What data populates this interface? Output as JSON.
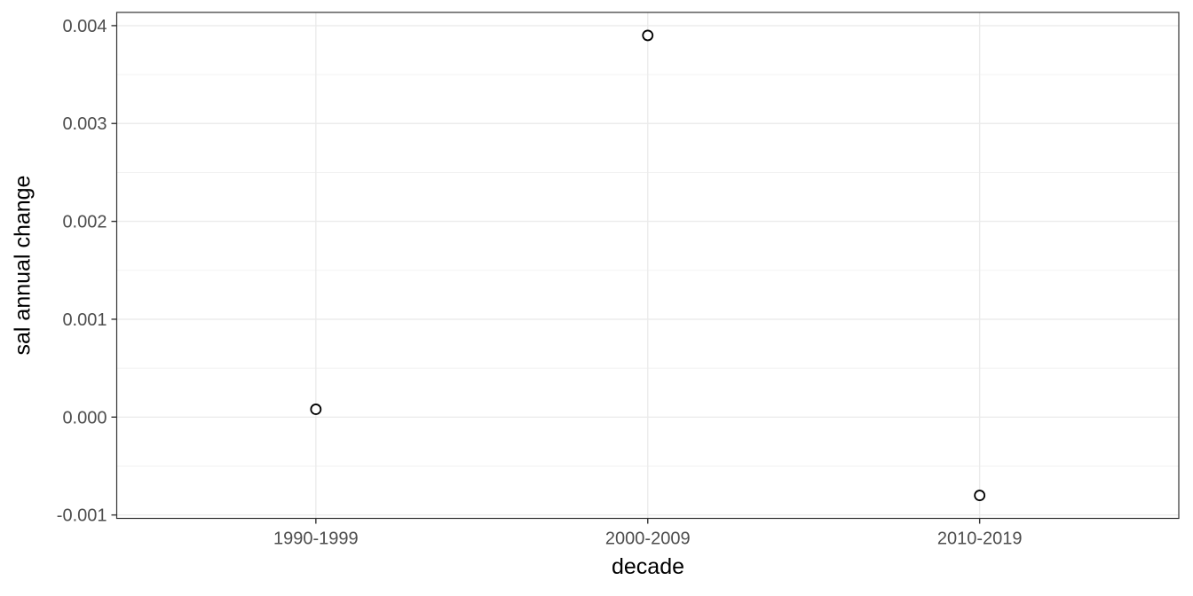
{
  "chart_data": {
    "type": "scatter",
    "title": "",
    "xlabel": "decade",
    "ylabel": "sal annual change",
    "categories": [
      "1990-1999",
      "2000-2009",
      "2010-2019"
    ],
    "values": [
      8e-05,
      0.0039,
      -0.0008
    ],
    "series": [
      {
        "name": "sal annual change",
        "values": [
          8e-05,
          0.0039,
          -0.0008
        ]
      }
    ],
    "ylim": [
      -0.001035,
      0.004135
    ],
    "y_tick_values": [
      -0.001,
      0.0,
      0.001,
      0.002,
      0.003,
      0.004
    ],
    "y_tick_labels": [
      "-0.001",
      "0.000",
      "0.001",
      "0.002",
      "0.003",
      "0.004"
    ],
    "y_minor_ticks": [
      -0.0005,
      0.0005,
      0.0015,
      0.0025,
      0.0035
    ],
    "grid": "horizontal major+minor, vertical major at categories",
    "legend": "none",
    "point_style": "open-circle",
    "colors": {
      "background": "#FFFFFF",
      "panel_background": "#FFFFFF",
      "grid_major": "#EBEBEB",
      "grid_minor": "#F1F1F1",
      "panel_border": "#333333",
      "tick_mark": "#333333",
      "tick_label": "#4D4D4D",
      "axis_title": "#000000",
      "point_stroke": "#000000",
      "point_fill": "#FFFFFF"
    }
  }
}
